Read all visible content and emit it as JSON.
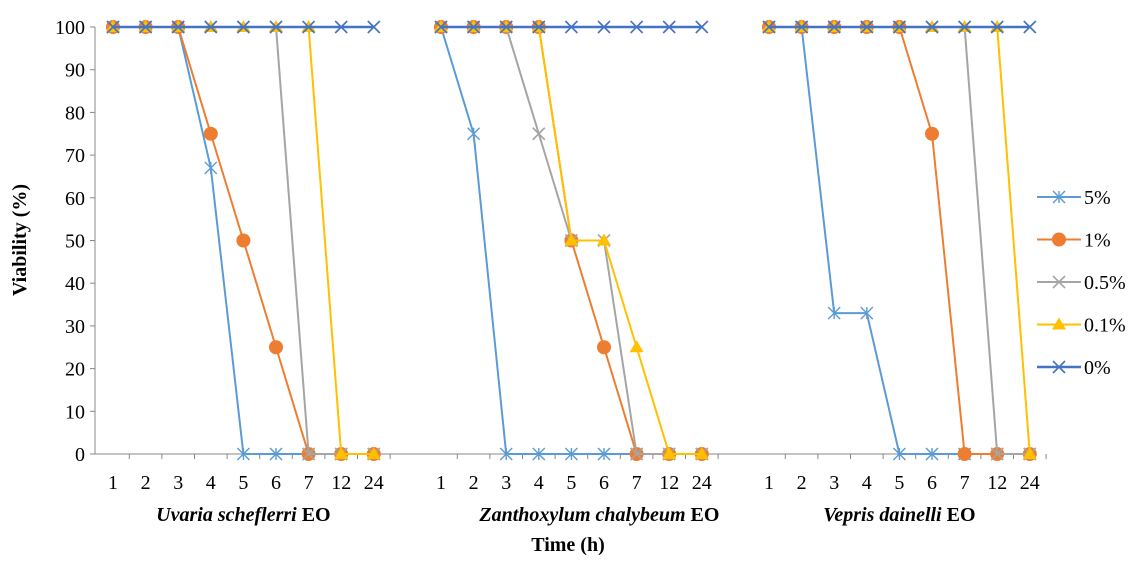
{
  "chart_data": {
    "type": "line",
    "ylabel": "Viability (%)",
    "xlabel": "Time (h)",
    "ylim": [
      0,
      100
    ],
    "yticks": [
      "0",
      "10",
      "20",
      "30",
      "40",
      "50",
      "60",
      "70",
      "80",
      "90",
      "100"
    ],
    "categories": [
      "1",
      "2",
      "3",
      "4",
      "5",
      "6",
      "7",
      "12",
      "24"
    ],
    "legend_position": "right",
    "grid": false,
    "series_styles": [
      {
        "name": "5%",
        "color": "#5B9BD5",
        "marker": "asterisk"
      },
      {
        "name": "1%",
        "color": "#ED7D31",
        "marker": "circle"
      },
      {
        "name": "0.5%",
        "color": "#A5A5A5",
        "marker": "x"
      },
      {
        "name": "0.1%",
        "color": "#FFC000",
        "marker": "triangle"
      },
      {
        "name": "0%",
        "color": "#4472C4",
        "marker": "x"
      }
    ],
    "panels": [
      {
        "species": "Uvaria scheflerri",
        "suffix": " EO",
        "series": [
          {
            "name": "5%",
            "values": [
              100,
              100,
              100,
              67,
              0,
              0,
              0,
              0,
              0
            ]
          },
          {
            "name": "1%",
            "values": [
              100,
              100,
              100,
              75,
              50,
              25,
              0,
              0,
              0
            ]
          },
          {
            "name": "0.5%",
            "values": [
              100,
              100,
              100,
              100,
              100,
              100,
              0,
              0,
              0
            ]
          },
          {
            "name": "0.1%",
            "values": [
              100,
              100,
              100,
              100,
              100,
              100,
              100,
              0,
              0
            ]
          },
          {
            "name": "0%",
            "values": [
              100,
              100,
              100,
              100,
              100,
              100,
              100,
              100,
              100
            ]
          }
        ]
      },
      {
        "species": "Zanthoxylum chalybeum",
        "suffix": " EO",
        "series": [
          {
            "name": "5%",
            "values": [
              100,
              75,
              0,
              0,
              0,
              0,
              0,
              0,
              0
            ]
          },
          {
            "name": "1%",
            "values": [
              100,
              100,
              100,
              100,
              50,
              25,
              0,
              0,
              0
            ]
          },
          {
            "name": "0.5%",
            "values": [
              100,
              100,
              100,
              75,
              50,
              50,
              0,
              0,
              0
            ]
          },
          {
            "name": "0.1%",
            "values": [
              100,
              100,
              100,
              100,
              50,
              50,
              25,
              0,
              0
            ]
          },
          {
            "name": "0%",
            "values": [
              100,
              100,
              100,
              100,
              100,
              100,
              100,
              100,
              100
            ]
          }
        ]
      },
      {
        "species": "Vepris dainelli",
        "suffix": " EO",
        "series": [
          {
            "name": "5%",
            "values": [
              100,
              100,
              33,
              33,
              0,
              0,
              0,
              0,
              0
            ]
          },
          {
            "name": "1%",
            "values": [
              100,
              100,
              100,
              100,
              100,
              75,
              0,
              0,
              0
            ]
          },
          {
            "name": "0.5%",
            "values": [
              100,
              100,
              100,
              100,
              100,
              100,
              100,
              0,
              0
            ]
          },
          {
            "name": "0.1%",
            "values": [
              100,
              100,
              100,
              100,
              100,
              100,
              100,
              100,
              0
            ]
          },
          {
            "name": "0%",
            "values": [
              100,
              100,
              100,
              100,
              100,
              100,
              100,
              100,
              100
            ]
          }
        ]
      }
    ]
  }
}
